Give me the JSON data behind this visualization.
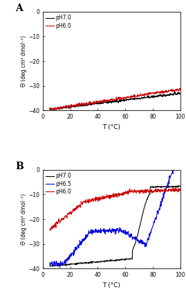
{
  "panel_A": {
    "title": "A",
    "xlabel": "T (°C)",
    "ylabel": "Θ (deg cm² dmol⁻¹)",
    "xlim": [
      0,
      100
    ],
    "ylim": [
      -40,
      0
    ],
    "yticks": [
      0,
      -10,
      -20,
      -30,
      -40
    ],
    "xticks": [
      0,
      20,
      40,
      60,
      80,
      100
    ],
    "legend": [
      {
        "label": "pH7.0",
        "color": "#000000"
      },
      {
        "label": "pH6.0",
        "color": "#cc0000"
      }
    ]
  },
  "panel_B": {
    "title": "B",
    "xlabel": "T (°C)",
    "ylabel": "Θ (deg cm² dmol⁻¹)",
    "xlim": [
      0,
      100
    ],
    "ylim": [
      -40,
      0
    ],
    "yticks": [
      0,
      -10,
      -20,
      -30,
      -40
    ],
    "xticks": [
      0,
      20,
      40,
      60,
      80,
      100
    ],
    "legend": [
      {
        "label": "pH7.0",
        "color": "#000000"
      },
      {
        "label": "pH6.5",
        "color": "#0000dd"
      },
      {
        "label": "pH6.0",
        "color": "#cc0000"
      }
    ]
  },
  "figure_background": "#ffffff",
  "axes_background": "#ffffff"
}
